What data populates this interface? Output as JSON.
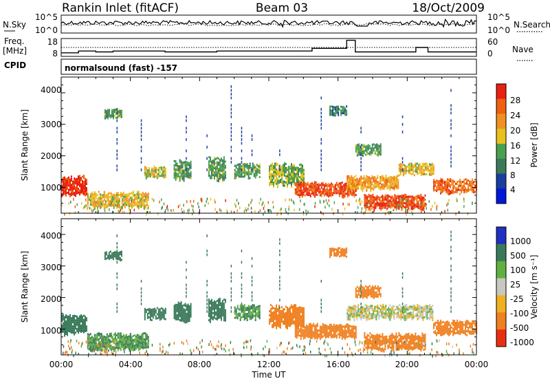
{
  "header": {
    "site": "Rankin Inlet (fitACF)",
    "beam": "Beam 03",
    "date": "18/Oct/2009"
  },
  "noise_panel": {
    "left_label": "N.Sky",
    "left_ticks": [
      "10^5",
      "10^0"
    ],
    "right_ticks": [
      "10^5",
      "10^0"
    ],
    "right_label": "N.Search"
  },
  "freq_panel": {
    "label_line1": "Freq.",
    "label_line2": "[MHz]",
    "left_ticks": [
      "18",
      "8"
    ],
    "right_ticks": [
      "60",
      "0"
    ],
    "right_label": "Nave"
  },
  "cpid_panel": {
    "label": "CPID",
    "text": "normalsound (fast) -157"
  },
  "power_panel": {
    "ylabel": "Slant Range [km]",
    "y_ticks": [
      "1000",
      "2000",
      "3000",
      "4000"
    ],
    "colorbar_label": "Power [dB]",
    "colorbar_ticks": [
      "4",
      "8",
      "12",
      "16",
      "20",
      "24",
      "28"
    ]
  },
  "velocity_panel": {
    "ylabel": "Slant Range [km]",
    "y_ticks": [
      "1000",
      "2000",
      "3000",
      "4000"
    ],
    "colorbar_label": "Velocity [m s⁻¹]",
    "colorbar_ticks": [
      "1000",
      "500",
      "100",
      "25",
      "-25",
      "-100",
      "-500",
      "-1000"
    ]
  },
  "x_axis": {
    "ticks": [
      "00:00",
      "04:00",
      "08:00",
      "12:00",
      "16:00",
      "20:00",
      "00:00"
    ],
    "label": "Time UT"
  },
  "colors": {
    "power_scale": [
      "#0018d8",
      "#1a3ea0",
      "#3a7a5a",
      "#4aa050",
      "#e8c020",
      "#f09020",
      "#f06010",
      "#e82010"
    ],
    "velocity_scale": [
      "#2030c0",
      "#3a7a5a",
      "#60b040",
      "#c8c8c0",
      "#f0b020",
      "#f08020",
      "#e83010"
    ]
  },
  "chart_data": [
    {
      "type": "heatmap",
      "title": "Power",
      "x_unit": "hours UT",
      "xlim": [
        0,
        24
      ],
      "ylim": [
        180,
        4500
      ],
      "ylabel": "Slant Range [km]",
      "value_label": "Power [dB]",
      "colorbar_range": [
        0,
        30
      ],
      "regions": [
        {
          "x": [
            0.0,
            1.5
          ],
          "y": [
            700,
            1400
          ],
          "value": 28
        },
        {
          "x": [
            1.5,
            5.0
          ],
          "y": [
            300,
            900
          ],
          "value": 18
        },
        {
          "x": [
            2.5,
            3.5
          ],
          "y": [
            3200,
            3500
          ],
          "value": 12
        },
        {
          "x": [
            4.8,
            6.0
          ],
          "y": [
            1300,
            1700
          ],
          "value": 16
        },
        {
          "x": [
            6.5,
            7.5
          ],
          "y": [
            1200,
            1900
          ],
          "value": 12
        },
        {
          "x": [
            8.5,
            9.5
          ],
          "y": [
            1200,
            2000
          ],
          "value": 12
        },
        {
          "x": [
            10.0,
            11.5
          ],
          "y": [
            1300,
            1800
          ],
          "value": 12
        },
        {
          "x": [
            12.0,
            14.0
          ],
          "y": [
            1000,
            1800
          ],
          "value": 14
        },
        {
          "x": [
            13.5,
            17.0
          ],
          "y": [
            700,
            1200
          ],
          "value": 26
        },
        {
          "x": [
            15.5,
            16.5
          ],
          "y": [
            3300,
            3600
          ],
          "value": 10
        },
        {
          "x": [
            16.5,
            19.5
          ],
          "y": [
            900,
            1400
          ],
          "value": 20
        },
        {
          "x": [
            17.0,
            18.5
          ],
          "y": [
            2000,
            2400
          ],
          "value": 12
        },
        {
          "x": [
            17.5,
            21.0
          ],
          "y": [
            300,
            800
          ],
          "value": 26
        },
        {
          "x": [
            19.5,
            21.5
          ],
          "y": [
            1400,
            1800
          ],
          "value": 18
        },
        {
          "x": [
            21.5,
            24.0
          ],
          "y": [
            800,
            1300
          ],
          "value": 24
        }
      ]
    },
    {
      "type": "heatmap",
      "title": "Velocity",
      "x_unit": "hours UT",
      "xlim": [
        0,
        24
      ],
      "ylim": [
        180,
        4500
      ],
      "ylabel": "Slant Range [km]",
      "value_label": "Velocity [m s⁻¹]",
      "colorbar_range": [
        -1000,
        1000
      ],
      "regions": [
        {
          "x": [
            0.0,
            1.5
          ],
          "y": [
            800,
            1500
          ],
          "value": 200
        },
        {
          "x": [
            1.5,
            5.0
          ],
          "y": [
            300,
            900
          ],
          "value": 100
        },
        {
          "x": [
            2.5,
            3.5
          ],
          "y": [
            3200,
            3500
          ],
          "value": 200
        },
        {
          "x": [
            4.8,
            6.0
          ],
          "y": [
            1300,
            1700
          ],
          "value": 200
        },
        {
          "x": [
            6.5,
            7.5
          ],
          "y": [
            1200,
            1900
          ],
          "value": 200
        },
        {
          "x": [
            8.5,
            9.5
          ],
          "y": [
            1200,
            2000
          ],
          "value": 200
        },
        {
          "x": [
            10.0,
            11.5
          ],
          "y": [
            1300,
            1800
          ],
          "value": 100
        },
        {
          "x": [
            12.0,
            14.0
          ],
          "y": [
            1000,
            1800
          ],
          "value": -300
        },
        {
          "x": [
            13.5,
            17.0
          ],
          "y": [
            700,
            1200
          ],
          "value": -300
        },
        {
          "x": [
            15.5,
            16.5
          ],
          "y": [
            3300,
            3600
          ],
          "value": -300
        },
        {
          "x": [
            17.0,
            18.5
          ],
          "y": [
            2000,
            2400
          ],
          "value": -300
        },
        {
          "x": [
            16.5,
            21.5
          ],
          "y": [
            1300,
            1800
          ],
          "value": 0
        },
        {
          "x": [
            17.5,
            21.0
          ],
          "y": [
            300,
            900
          ],
          "value": -300
        },
        {
          "x": [
            21.5,
            24.0
          ],
          "y": [
            800,
            1300
          ],
          "value": -200
        }
      ]
    }
  ]
}
